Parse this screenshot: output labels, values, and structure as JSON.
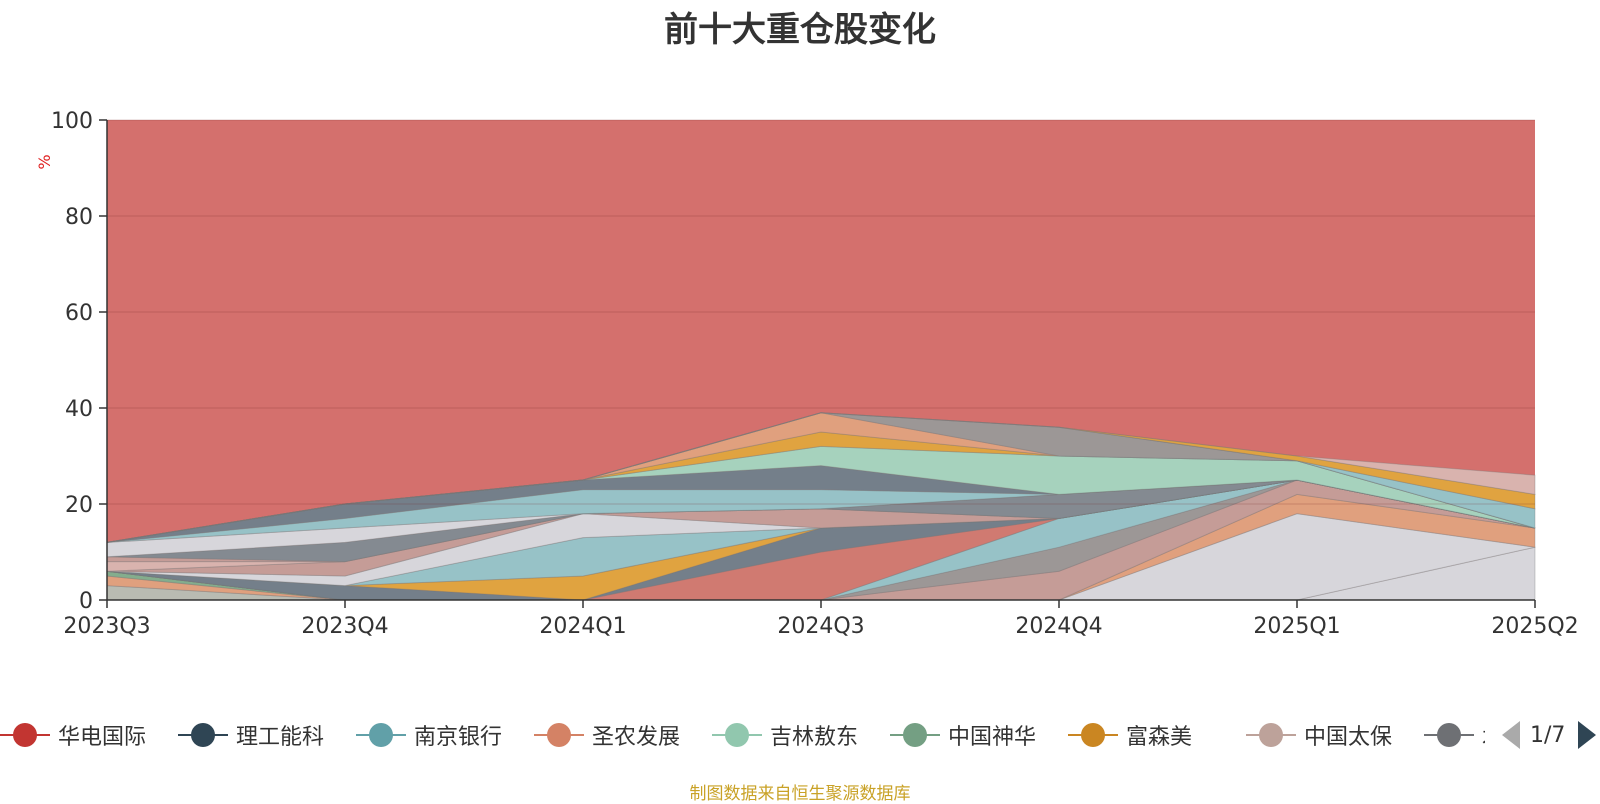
{
  "chart_data": {
    "type": "area",
    "title": "前十大重仓股变化",
    "ylabel": "%",
    "xlabel": "",
    "ylim": [
      0,
      100
    ],
    "y_ticks": [
      "0",
      "20",
      "40",
      "60",
      "80",
      "100"
    ],
    "categories": [
      "2023Q3",
      "2023Q4",
      "2024Q1",
      "2024Q3",
      "2024Q4",
      "2025Q1",
      "2025Q2"
    ],
    "stacked": true,
    "grid": true,
    "legend_position": "bottom",
    "legend_page": "1/7",
    "series": [
      {
        "name": "",
        "color": "#b7bfb6",
        "values": [
          3,
          0,
          0,
          0,
          0,
          0,
          0
        ]
      },
      {
        "name": "",
        "color": "#e0a27f",
        "values": [
          2,
          0,
          0,
          0,
          0,
          0,
          0
        ]
      },
      {
        "name": "",
        "color": "#7fb08f",
        "values": [
          1,
          0,
          0,
          0,
          0,
          0,
          0
        ]
      },
      {
        "name": "",
        "color": "#d7dbe2",
        "values": [
          0,
          0,
          0,
          0,
          0,
          0,
          11
        ]
      },
      {
        "name": "",
        "color": "#d7dbe2",
        "values": [
          0,
          0,
          0,
          0,
          0,
          18,
          0
        ]
      },
      {
        "name": "",
        "color": "#e0a27f",
        "values": [
          0,
          0,
          0,
          0,
          0,
          4,
          4
        ]
      },
      {
        "name": "",
        "color": "#c49e9a",
        "values": [
          0,
          0,
          0,
          0,
          6,
          3,
          0
        ]
      },
      {
        "name": "",
        "color": "#999999",
        "values": [
          0,
          0,
          0,
          0,
          5,
          0,
          0
        ]
      },
      {
        "name": "",
        "color": "#93c6cc",
        "values": [
          0,
          0,
          0,
          0,
          6,
          0,
          0
        ]
      },
      {
        "name": "",
        "color": "#d07a72",
        "values": [
          0,
          0,
          0,
          10,
          0,
          0,
          0
        ]
      },
      {
        "name": "",
        "color": "#6f7f8c",
        "values": [
          0,
          3,
          0,
          5,
          0,
          0,
          0
        ]
      },
      {
        "name": "",
        "color": "#e0a53e",
        "values": [
          0,
          0,
          5,
          0,
          0,
          0,
          0
        ]
      },
      {
        "name": "",
        "color": "#93c6cc",
        "values": [
          0,
          0,
          8,
          0,
          0,
          0,
          0
        ]
      },
      {
        "name": "",
        "color": "#d7dbe2",
        "values": [
          0,
          2,
          5,
          0,
          0,
          0,
          0
        ]
      },
      {
        "name": "",
        "color": "#c49e9a",
        "values": [
          0,
          3,
          0,
          4,
          0,
          0,
          0
        ]
      },
      {
        "name": "",
        "color": "#d7dbe2",
        "values": [
          0,
          0,
          0,
          0,
          0,
          0,
          0
        ]
      },
      {
        "name": "",
        "color": "#d9b6b2",
        "values": [
          2,
          0,
          0,
          0,
          0,
          0,
          0
        ]
      },
      {
        "name": "",
        "color": "#c49e9a",
        "values": [
          1,
          0,
          0,
          0,
          0,
          0,
          0
        ]
      },
      {
        "name": "",
        "color": "#7f8b94",
        "values": [
          0,
          4,
          0,
          0,
          5,
          0,
          0
        ]
      },
      {
        "name": "",
        "color": "#d7dbe2",
        "values": [
          3,
          3,
          0,
          0,
          0,
          0,
          0
        ]
      },
      {
        "name": "",
        "color": "#93c6cc",
        "values": [
          0,
          2,
          5,
          4,
          0,
          0,
          0
        ]
      },
      {
        "name": "",
        "color": "#6f7f8c",
        "values": [
          0,
          3,
          2,
          5,
          0,
          0,
          0
        ]
      },
      {
        "name": "",
        "color": "#a3d7c2",
        "values": [
          0,
          0,
          0,
          4,
          8,
          4,
          0
        ]
      },
      {
        "name": "",
        "color": "#e0a53e",
        "values": [
          0,
          0,
          0,
          3,
          0,
          0,
          0
        ]
      },
      {
        "name": "",
        "color": "#e0a27f",
        "values": [
          0,
          0,
          0,
          4,
          0,
          0,
          0
        ]
      },
      {
        "name": "",
        "color": "#999999",
        "values": [
          0,
          0,
          0,
          0,
          6,
          0,
          0
        ]
      },
      {
        "name": "",
        "color": "#93c6cc",
        "values": [
          0,
          0,
          0,
          0,
          0,
          0,
          4
        ]
      },
      {
        "name": "",
        "color": "#e0a53e",
        "values": [
          0,
          0,
          0,
          0,
          0,
          1,
          3
        ]
      },
      {
        "name": "",
        "color": "#d9b6b2",
        "values": [
          0,
          0,
          0,
          0,
          0,
          0,
          4
        ]
      }
    ]
  },
  "legend": {
    "items": [
      {
        "name": "华电国际",
        "color": "#c23531"
      },
      {
        "name": "理工能科",
        "color": "#2f4554"
      },
      {
        "name": "南京银行",
        "color": "#61a0a8"
      },
      {
        "name": "圣农发展",
        "color": "#d48265"
      },
      {
        "name": "吉林敖东",
        "color": "#91c7ae"
      },
      {
        "name": "中国神华",
        "color": "#749f83"
      },
      {
        "name": "富森美",
        "color": "#ca8622"
      },
      {
        "name": "中国太保",
        "color": "#bda29a"
      },
      {
        "name": "木林森",
        "color": "#6e7074"
      }
    ],
    "page_text": "1/7"
  },
  "source_note": "制图数据来自恒生聚源数据库"
}
